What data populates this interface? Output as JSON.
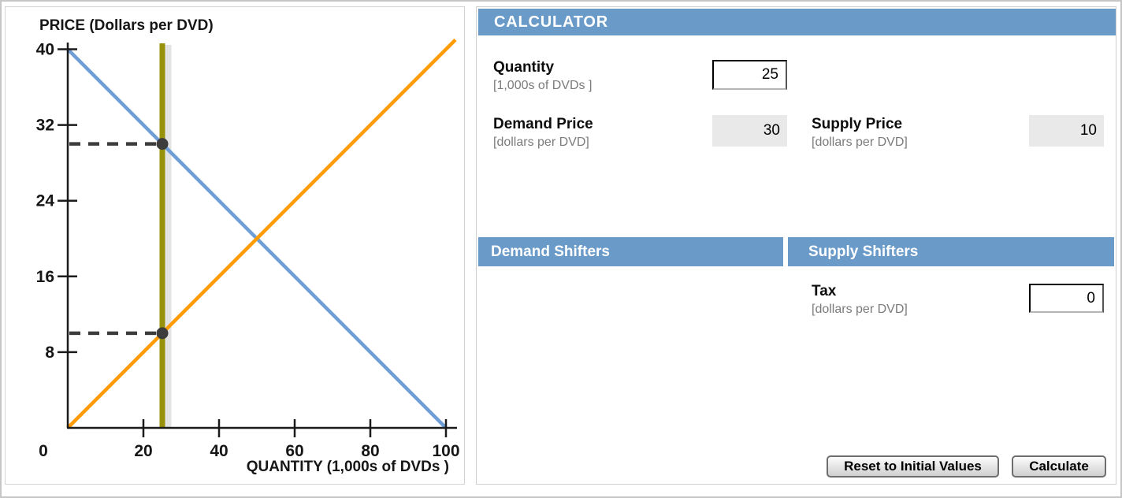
{
  "chart_data": {
    "type": "line",
    "title": "PRICE (Dollars per DVD)",
    "xlabel": "QUANTITY (1,000s of DVDs )",
    "xlim": [
      0,
      100
    ],
    "ylim": [
      0,
      40
    ],
    "x_ticks": [
      20,
      40,
      60,
      80,
      100
    ],
    "x_origin_label": "0",
    "y_ticks": [
      8,
      16,
      24,
      32,
      40
    ],
    "grid": false,
    "legend": "none",
    "series": [
      {
        "name": "demand",
        "color": "#6f9ed6",
        "points": [
          [
            0,
            40
          ],
          [
            100,
            0
          ]
        ]
      },
      {
        "name": "supply",
        "color": "#ff9c05",
        "points": [
          [
            0,
            0
          ],
          [
            102.5,
            41
          ]
        ]
      }
    ],
    "quantity_line": {
      "x": 25,
      "color": "#98920a",
      "shadow_color": "#e3e3e3"
    },
    "guides": [
      {
        "price": 30,
        "quantity": 25
      },
      {
        "price": 10,
        "quantity": 25
      }
    ],
    "guide_color": "#3c3c3c",
    "axis_color": "#1b1b1b"
  },
  "calculator": {
    "header": "CALCULATOR",
    "quantity": {
      "label": "Quantity",
      "sublabel": "[1,000s of DVDs ]",
      "value": "25"
    },
    "demand_price": {
      "label": "Demand Price",
      "sublabel": "[dollars per DVD]",
      "value": "30"
    },
    "supply_price": {
      "label": "Supply Price",
      "sublabel": "[dollars per DVD]",
      "value": "10"
    },
    "demand_shifters_header": "Demand Shifters",
    "supply_shifters_header": "Supply Shifters",
    "tax": {
      "label": "Tax",
      "sublabel": "[dollars per DVD]",
      "value": "0"
    },
    "buttons": {
      "reset": "Reset to Initial Values",
      "calculate": "Calculate"
    }
  }
}
